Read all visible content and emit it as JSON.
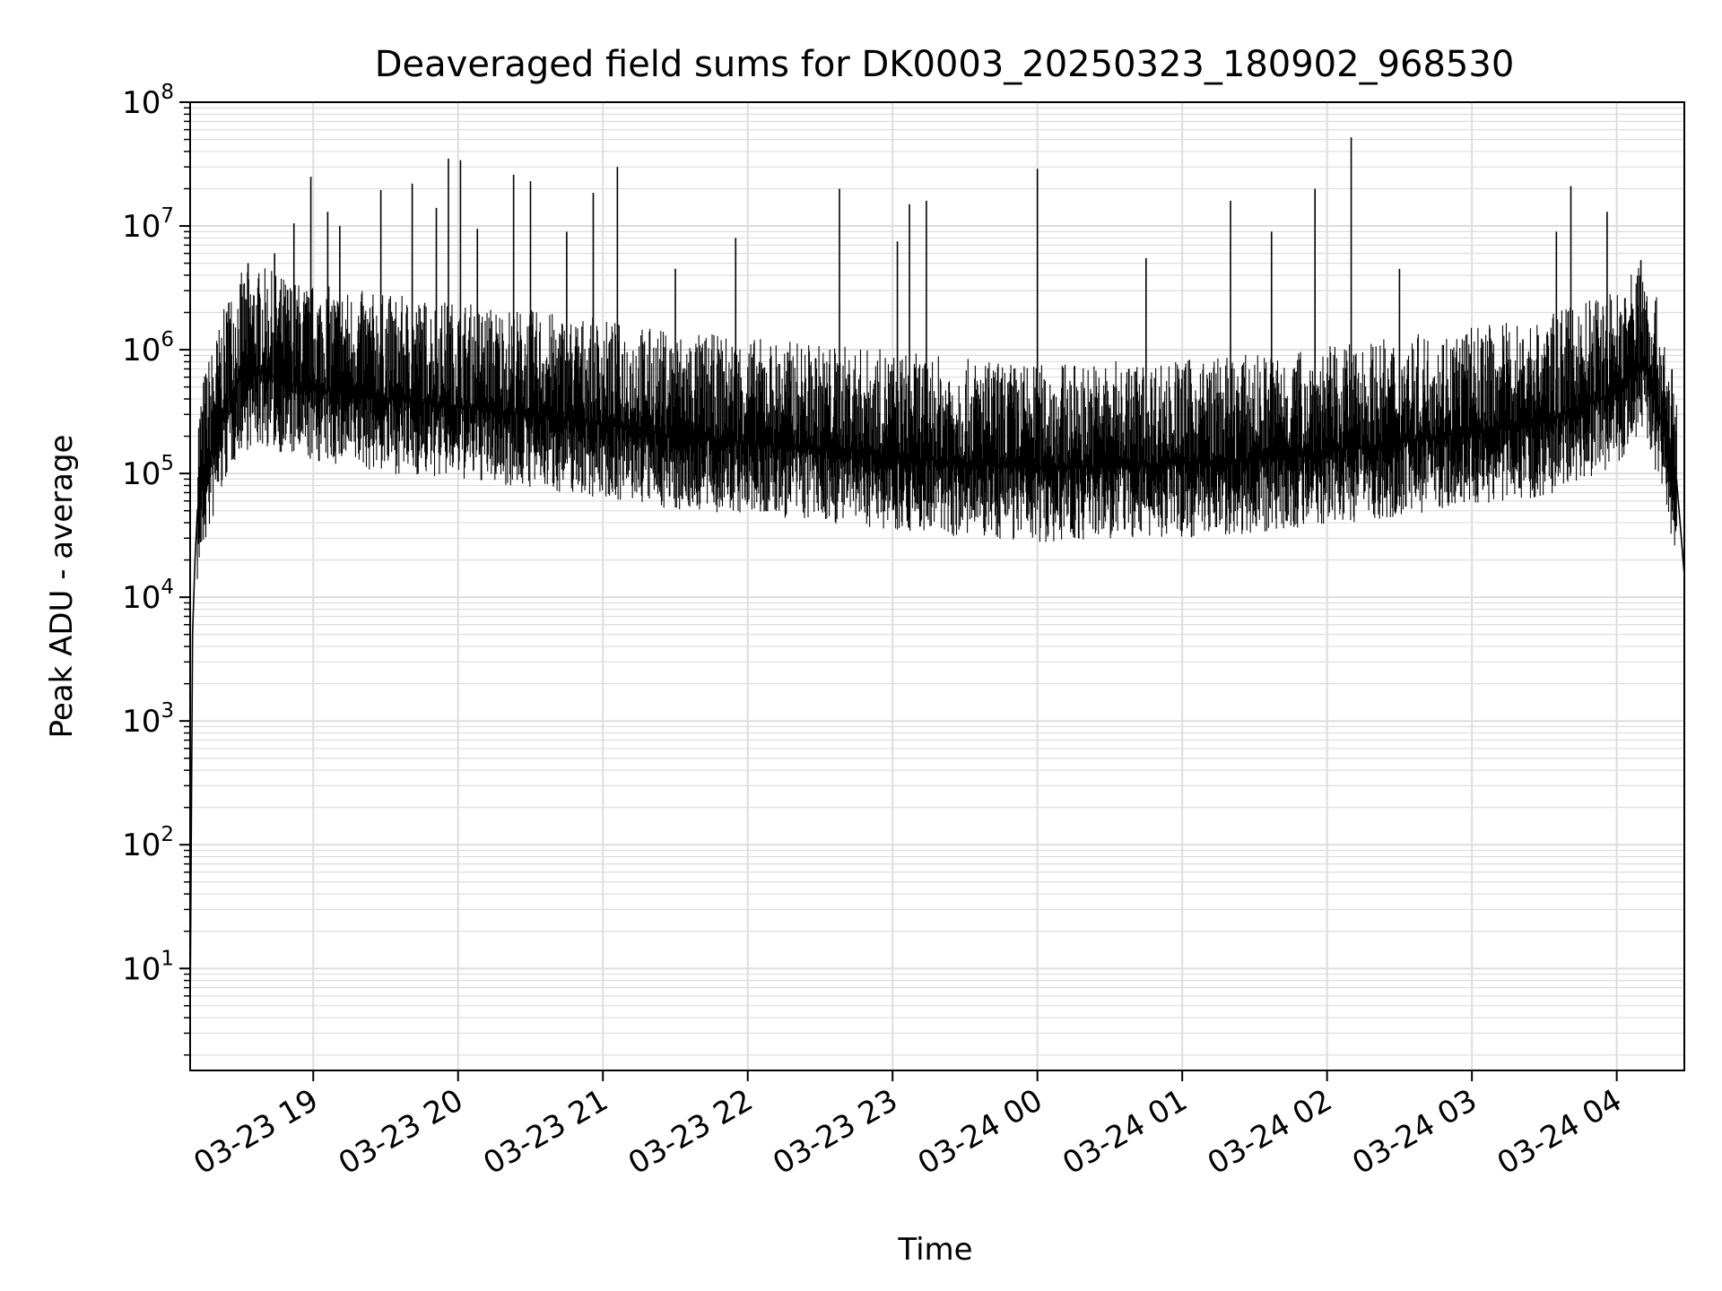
{
  "chart_data": {
    "type": "line",
    "title": "Deaveraged field sums for DK0003_20250323_180902_968530",
    "xlabel": "Time",
    "ylabel": "Peak ADU - average",
    "yscale": "log",
    "ylim": [
      1.5,
      100000000
    ],
    "xlim": [
      "03-23 18:09",
      "03-24 04:28"
    ],
    "grid": true,
    "line_color": "#000000",
    "grid_color": "#dddddd",
    "x_ticks": [
      {
        "label": "03-23 19",
        "time": "03-23 19:00"
      },
      {
        "label": "03-23 20",
        "time": "03-23 20:00"
      },
      {
        "label": "03-23 21",
        "time": "03-23 21:00"
      },
      {
        "label": "03-23 22",
        "time": "03-23 22:00"
      },
      {
        "label": "03-23 23",
        "time": "03-23 23:00"
      },
      {
        "label": "03-24 00",
        "time": "03-24 00:00"
      },
      {
        "label": "03-24 01",
        "time": "03-24 01:00"
      },
      {
        "label": "03-24 02",
        "time": "03-24 02:00"
      },
      {
        "label": "03-24 03",
        "time": "03-24 03:00"
      },
      {
        "label": "03-24 04",
        "time": "03-24 04:00"
      }
    ],
    "y_ticks": [
      {
        "base": "10",
        "exp": "1",
        "value": 10
      },
      {
        "base": "10",
        "exp": "2",
        "value": 100
      },
      {
        "base": "10",
        "exp": "3",
        "value": 1000
      },
      {
        "base": "10",
        "exp": "4",
        "value": 10000
      },
      {
        "base": "10",
        "exp": "5",
        "value": 100000
      },
      {
        "base": "10",
        "exp": "6",
        "value": 1000000
      },
      {
        "base": "10",
        "exp": "7",
        "value": 10000000
      },
      {
        "base": "10",
        "exp": "8",
        "value": 100000000
      }
    ],
    "series": [
      {
        "points": [
          {
            "t": "03-23 18:09",
            "y": 4
          },
          {
            "t": "03-23 18:10",
            "y": 5000
          },
          {
            "t": "03-23 18:11",
            "y": 20000
          },
          {
            "t": "03-23 18:12",
            "y": 50000
          },
          {
            "t": "03-23 18:15",
            "y": 100000
          },
          {
            "t": "03-23 18:20",
            "y": 200000
          },
          {
            "t": "03-23 18:25",
            "y": 400000
          },
          {
            "t": "03-23 18:30",
            "y": 600000
          },
          {
            "t": "03-23 18:40",
            "y": 650000
          },
          {
            "t": "03-23 18:55",
            "y": 500000
          },
          {
            "t": "03-23 19:30",
            "y": 400000
          },
          {
            "t": "03-23 20:00",
            "y": 350000
          },
          {
            "t": "03-23 20:30",
            "y": 300000
          },
          {
            "t": "03-23 21:00",
            "y": 250000
          },
          {
            "t": "03-23 21:30",
            "y": 200000
          },
          {
            "t": "03-23 22:00",
            "y": 180000
          },
          {
            "t": "03-23 22:30",
            "y": 160000
          },
          {
            "t": "03-23 23:00",
            "y": 140000
          },
          {
            "t": "03-23 23:30",
            "y": 120000
          },
          {
            "t": "03-24 00:00",
            "y": 110000
          },
          {
            "t": "03-24 00:30",
            "y": 115000
          },
          {
            "t": "03-24 01:00",
            "y": 120000
          },
          {
            "t": "03-24 01:30",
            "y": 130000
          },
          {
            "t": "03-24 02:00",
            "y": 150000
          },
          {
            "t": "03-24 02:30",
            "y": 180000
          },
          {
            "t": "03-24 03:00",
            "y": 220000
          },
          {
            "t": "03-24 03:30",
            "y": 260000
          },
          {
            "t": "03-24 04:00",
            "y": 450000
          },
          {
            "t": "03-24 04:10",
            "y": 800000
          },
          {
            "t": "03-24 04:15",
            "y": 500000
          },
          {
            "t": "03-24 04:20",
            "y": 200000
          },
          {
            "t": "03-24 04:25",
            "y": 80000
          },
          {
            "t": "03-24 04:28",
            "y": 15000
          }
        ],
        "spikes": [
          {
            "t": "03-23 18:25",
            "y": 2400000
          },
          {
            "t": "03-23 18:33",
            "y": 5000000
          },
          {
            "t": "03-23 18:44",
            "y": 6000000
          },
          {
            "t": "03-23 18:52",
            "y": 10500000
          },
          {
            "t": "03-23 18:59",
            "y": 25000000
          },
          {
            "t": "03-23 19:06",
            "y": 13000000
          },
          {
            "t": "03-23 19:11",
            "y": 10000000
          },
          {
            "t": "03-23 19:28",
            "y": 19500000
          },
          {
            "t": "03-23 19:41",
            "y": 22000000
          },
          {
            "t": "03-23 19:51",
            "y": 14000000
          },
          {
            "t": "03-23 19:56",
            "y": 35000000
          },
          {
            "t": "03-23 20:01",
            "y": 34000000
          },
          {
            "t": "03-23 20:08",
            "y": 9500000
          },
          {
            "t": "03-23 20:23",
            "y": 26000000
          },
          {
            "t": "03-23 20:30",
            "y": 23000000
          },
          {
            "t": "03-23 20:45",
            "y": 9000000
          },
          {
            "t": "03-23 20:56",
            "y": 18500000
          },
          {
            "t": "03-23 21:06",
            "y": 30000000
          },
          {
            "t": "03-23 21:30",
            "y": 4500000
          },
          {
            "t": "03-23 21:55",
            "y": 8000000
          },
          {
            "t": "03-23 22:38",
            "y": 20000000
          },
          {
            "t": "03-23 23:02",
            "y": 7500000
          },
          {
            "t": "03-23 23:07",
            "y": 15000000
          },
          {
            "t": "03-23 23:14",
            "y": 16000000
          },
          {
            "t": "03-24 00:00",
            "y": 29000000
          },
          {
            "t": "03-24 00:45",
            "y": 5500000
          },
          {
            "t": "03-24 01:20",
            "y": 16000000
          },
          {
            "t": "03-24 01:37",
            "y": 9000000
          },
          {
            "t": "03-24 01:55",
            "y": 20000000
          },
          {
            "t": "03-24 02:10",
            "y": 52000000
          },
          {
            "t": "03-24 02:30",
            "y": 4500000
          },
          {
            "t": "03-24 03:35",
            "y": 9000000
          },
          {
            "t": "03-24 03:41",
            "y": 21000000
          },
          {
            "t": "03-24 03:56",
            "y": 13000000
          },
          {
            "t": "03-24 04:10",
            "y": 5300000
          }
        ]
      }
    ]
  }
}
